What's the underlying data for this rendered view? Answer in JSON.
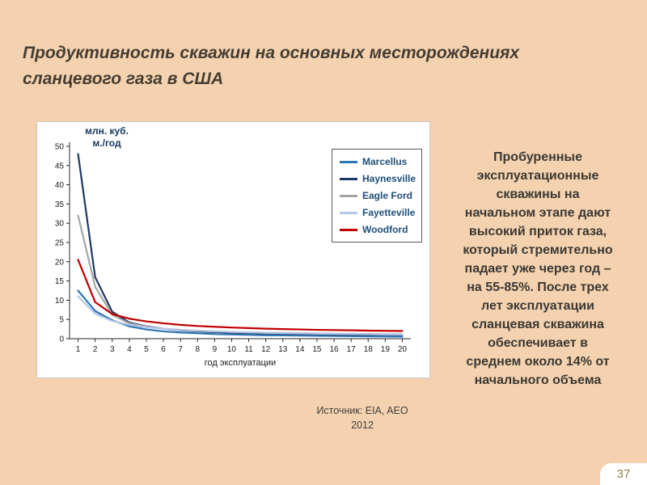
{
  "slide": {
    "title": "Продуктивность скважин на основных месторождениях сланцевого газа в США",
    "source": "Источник: EIA, AEO 2012",
    "body_text": "Пробуренные эксплуатационные скважины на начальном этапе дают высокий приток газа, который стремительно падает уже через год – на 55-85%. После трех лет эксплуатации сланцевая скважина обеспечивает в среднем около 14% от начального объема",
    "page_number": "37"
  },
  "colors": {
    "background": "#F4D2AF",
    "title_text": "#453C33",
    "body_text": "#3B3834",
    "legend_text": "#1F4E79",
    "page_number": "#8B7D4A",
    "axis": "#262626"
  },
  "chart_data": {
    "type": "line",
    "title": "",
    "ylabel": "млн. куб.\nм./год",
    "xlabel": "год эксплуатации",
    "ylim": [
      0,
      50
    ],
    "ytick_step": 5,
    "grid": false,
    "legend_position": "top-right",
    "x": [
      1,
      2,
      3,
      4,
      5,
      6,
      7,
      8,
      9,
      10,
      11,
      12,
      13,
      14,
      15,
      16,
      17,
      18,
      19,
      20
    ],
    "series": [
      {
        "name": "Marcellus",
        "color": "#2E75B6",
        "values": [
          12.5,
          7.2,
          4.8,
          3.2,
          2.4,
          1.9,
          1.6,
          1.4,
          1.2,
          1.1,
          1.0,
          0.9,
          0.85,
          0.8,
          0.75,
          0.7,
          0.65,
          0.6,
          0.58,
          0.55
        ]
      },
      {
        "name": "Haynesville",
        "color": "#1F3864",
        "values": [
          48,
          16,
          7,
          4.2,
          3.2,
          2.6,
          2.2,
          1.9,
          1.7,
          1.55,
          1.45,
          1.35,
          1.28,
          1.22,
          1.17,
          1.12,
          1.08,
          1.05,
          1.02,
          1.0
        ]
      },
      {
        "name": "Eagle Ford",
        "color": "#A5A5A5",
        "values": [
          32,
          13.5,
          6.2,
          4.0,
          3.1,
          2.6,
          2.3,
          2.05,
          1.9,
          1.75,
          1.65,
          1.55,
          1.5,
          1.42,
          1.36,
          1.3,
          1.26,
          1.22,
          1.18,
          1.15
        ]
      },
      {
        "name": "Fayetteville",
        "color": "#B4C7E7",
        "values": [
          11,
          6.5,
          4.6,
          3.6,
          3.0,
          2.6,
          2.3,
          2.1,
          1.9,
          1.75,
          1.65,
          1.55,
          1.45,
          1.4,
          1.32,
          1.27,
          1.22,
          1.17,
          1.13,
          1.1
        ]
      },
      {
        "name": "Woodford",
        "color": "#C00000",
        "values": [
          20.5,
          9.5,
          6.4,
          5.2,
          4.5,
          4.0,
          3.6,
          3.3,
          3.1,
          2.9,
          2.75,
          2.6,
          2.5,
          2.4,
          2.3,
          2.25,
          2.18,
          2.1,
          2.05,
          2.0
        ]
      }
    ]
  }
}
